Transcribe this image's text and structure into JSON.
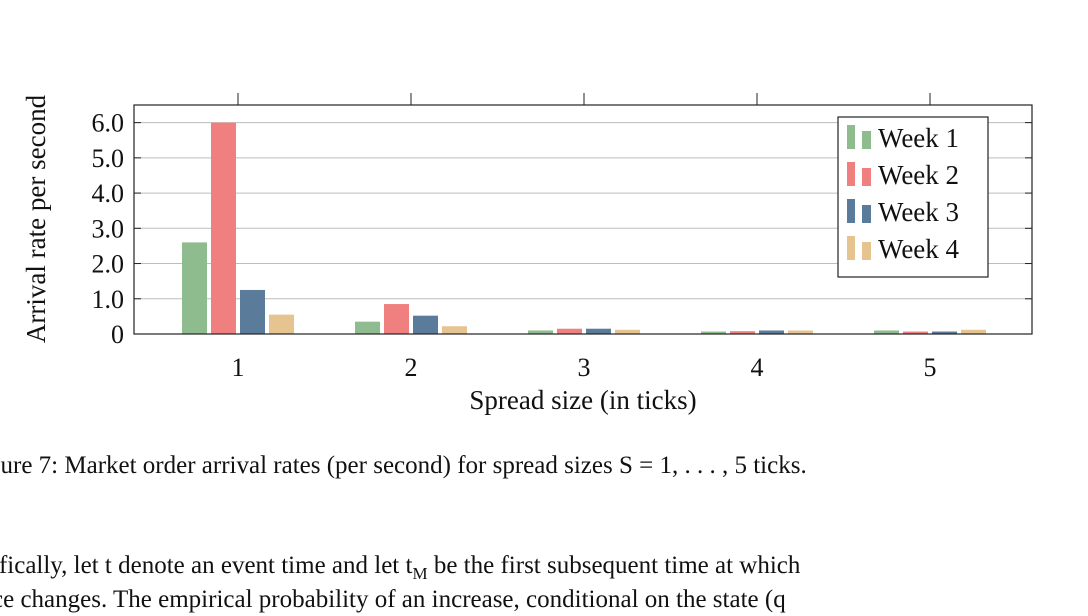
{
  "chart_data": {
    "type": "bar",
    "title": "",
    "xlabel": "Spread size (in ticks)",
    "ylabel": "Arrival rate per second",
    "categories": [
      "1",
      "2",
      "3",
      "4",
      "5"
    ],
    "ylim": [
      0,
      6.5
    ],
    "yticks": [
      "0",
      "1.0",
      "2.0",
      "3.0",
      "4.0",
      "5.0",
      "6.0"
    ],
    "grid": "horizontal",
    "legend_position": "top-right",
    "series": [
      {
        "name": "Week 1",
        "color": "#8fbc8f",
        "values": [
          2.6,
          0.35,
          0.1,
          0.07,
          0.1
        ]
      },
      {
        "name": "Week 2",
        "color": "#f08080",
        "values": [
          6.0,
          0.85,
          0.15,
          0.08,
          0.07
        ]
      },
      {
        "name": "Week 3",
        "color": "#5b7b9a",
        "values": [
          1.25,
          0.52,
          0.15,
          0.1,
          0.07
        ]
      },
      {
        "name": "Week 4",
        "color": "#e5c48f",
        "values": [
          0.55,
          0.22,
          0.12,
          0.1,
          0.12
        ]
      }
    ]
  },
  "caption": "gure 7: Market order arrival rates (per second) for spread sizes S = 1, . . . , 5 ticks.",
  "paragraph": {
    "line1": "ifically, let t denote an event time and let t",
    "line1_sub": "M",
    "line1_rest": " be the first subsequent time at which",
    "line2": "ce changes. The empirical probability of an increase, conditional on the state (q"
  }
}
